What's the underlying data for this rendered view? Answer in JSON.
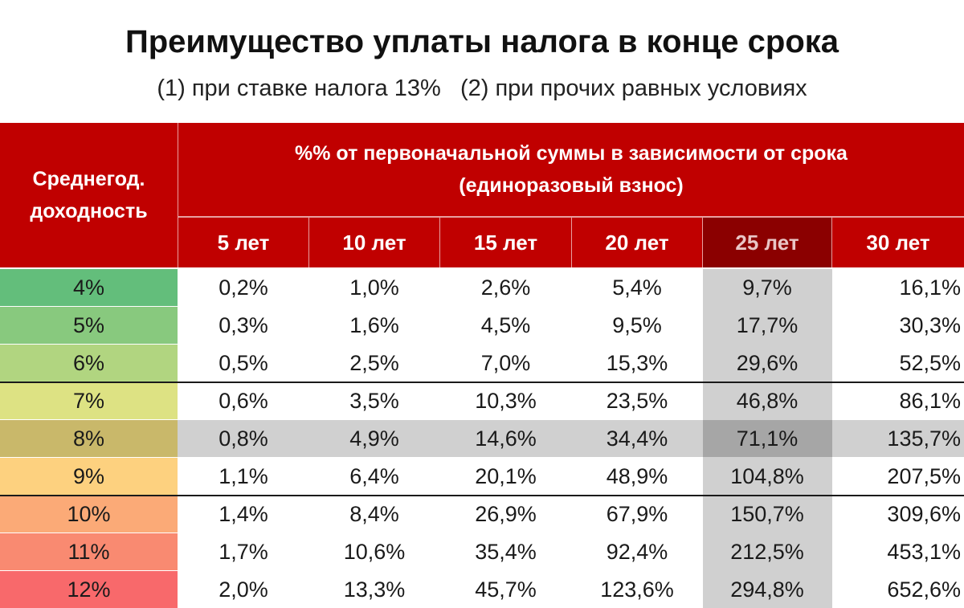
{
  "header": {
    "title": "Преимущество уплаты налога в конце срока",
    "subtitle": "(1) при ставке налога 13%   (2) при прочих равных условиях"
  },
  "table": {
    "row_header_line1": "Среднегод.",
    "row_header_line2": "доходность",
    "group_header_line1": "%% от первоначальной суммы в зависимости от срока",
    "group_header_line2": "(единоразовый взнос)",
    "highlight_column_index": 4,
    "highlight_row_index": 4,
    "colors": {
      "header_red": "#c00000",
      "header_highlight": "#8b0000",
      "highlight_gray": "#d0d0d0",
      "intersection_gray": "#a6a6a6"
    }
  },
  "chart_data": {
    "type": "table",
    "columns": [
      "5 лет",
      "10 лет",
      "15 лет",
      "20 лет",
      "25 лет",
      "30 лет"
    ],
    "rows": [
      {
        "yield": "4%",
        "color": "#63be7b",
        "values": [
          "0,2%",
          "1,0%",
          "2,6%",
          "5,4%",
          "9,7%",
          "16,1%"
        ]
      },
      {
        "yield": "5%",
        "color": "#88c97e",
        "values": [
          "0,3%",
          "1,6%",
          "4,5%",
          "9,5%",
          "17,7%",
          "30,3%"
        ]
      },
      {
        "yield": "6%",
        "color": "#b1d580",
        "values": [
          "0,5%",
          "2,5%",
          "7,0%",
          "15,3%",
          "29,6%",
          "52,5%"
        ]
      },
      {
        "yield": "7%",
        "color": "#dde283",
        "values": [
          "0,6%",
          "3,5%",
          "10,3%",
          "23,5%",
          "46,8%",
          "86,1%"
        ]
      },
      {
        "yield": "8%",
        "color": "#c9b86a",
        "values": [
          "0,8%",
          "4,9%",
          "14,6%",
          "34,4%",
          "71,1%",
          "135,7%"
        ]
      },
      {
        "yield": "9%",
        "color": "#fdd17f",
        "values": [
          "1,1%",
          "6,4%",
          "20,1%",
          "48,9%",
          "104,8%",
          "207,5%"
        ]
      },
      {
        "yield": "10%",
        "color": "#fbaa77",
        "values": [
          "1,4%",
          "8,4%",
          "26,9%",
          "67,9%",
          "150,7%",
          "309,6%"
        ]
      },
      {
        "yield": "11%",
        "color": "#f98a71",
        "values": [
          "1,7%",
          "10,6%",
          "35,4%",
          "92,4%",
          "212,5%",
          "453,1%"
        ]
      },
      {
        "yield": "12%",
        "color": "#f8696b",
        "values": [
          "2,0%",
          "13,3%",
          "45,7%",
          "123,6%",
          "294,8%",
          "652,6%"
        ]
      }
    ]
  }
}
